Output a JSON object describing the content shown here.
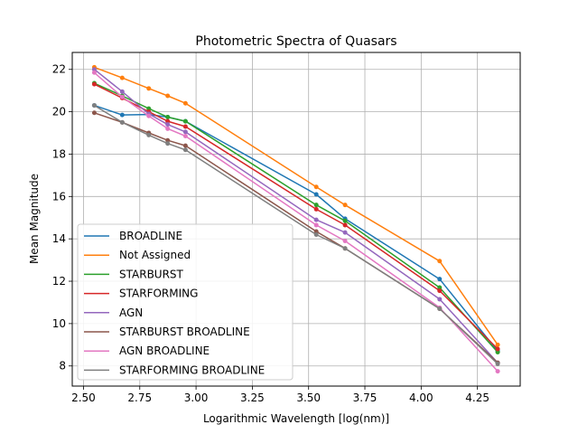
{
  "chart_data": {
    "type": "line",
    "title": "Photometric Spectra of Quasars",
    "xlabel": "Logarithmic Wavelength [log(nm)]",
    "ylabel": "Mean Magnitude",
    "xlim": [
      2.45,
      4.44
    ],
    "ylim": [
      7.05,
      22.8
    ],
    "xticks": [
      2.5,
      2.75,
      3.0,
      3.25,
      3.5,
      3.75,
      4.0,
      4.25
    ],
    "xtick_labels": [
      "2.50",
      "2.75",
      "3.00",
      "3.25",
      "3.50",
      "3.75",
      "4.00",
      "4.25"
    ],
    "yticks": [
      8,
      10,
      12,
      14,
      16,
      18,
      20,
      22
    ],
    "ytick_labels": [
      "8",
      "10",
      "12",
      "14",
      "16",
      "18",
      "20",
      "22"
    ],
    "grid": true,
    "legend_position": "lower-left",
    "x": [
      2.548,
      2.672,
      2.79,
      2.874,
      2.953,
      3.534,
      3.662,
      4.082,
      4.34
    ],
    "series": [
      {
        "name": "BROADLINE",
        "color": "#1f77b4",
        "values": [
          20.3,
          19.85,
          19.87,
          19.75,
          19.55,
          16.1,
          14.95,
          12.1,
          8.7
        ]
      },
      {
        "name": "Not Assigned",
        "color": "#ff7f0e",
        "values": [
          22.1,
          21.6,
          21.1,
          20.75,
          20.4,
          16.45,
          15.6,
          12.95,
          9.0
        ]
      },
      {
        "name": "STARBURST",
        "color": "#2ca02c",
        "values": [
          21.35,
          20.75,
          20.15,
          19.75,
          19.55,
          15.6,
          14.85,
          11.7,
          8.65
        ]
      },
      {
        "name": "STARFORMING",
        "color": "#d62728",
        "values": [
          21.3,
          20.65,
          20.0,
          19.55,
          19.3,
          15.4,
          14.65,
          11.55,
          8.8
        ]
      },
      {
        "name": "AGN",
        "color": "#9467bd",
        "values": [
          22.0,
          20.95,
          19.9,
          19.4,
          19.05,
          14.9,
          14.3,
          11.15,
          8.15
        ]
      },
      {
        "name": "STARBURST BROADLINE",
        "color": "#8c564b",
        "values": [
          19.95,
          19.5,
          19.0,
          18.65,
          18.4,
          14.35,
          13.55,
          10.7,
          8.15
        ]
      },
      {
        "name": "AGN BROADLINE",
        "color": "#e377c2",
        "values": [
          21.85,
          20.7,
          19.8,
          19.2,
          18.85,
          14.65,
          13.9,
          10.75,
          7.75
        ]
      },
      {
        "name": "STARFORMING BROADLINE",
        "color": "#7f7f7f",
        "values": [
          20.3,
          19.5,
          18.9,
          18.5,
          18.2,
          14.2,
          13.55,
          10.7,
          8.1
        ]
      }
    ]
  }
}
